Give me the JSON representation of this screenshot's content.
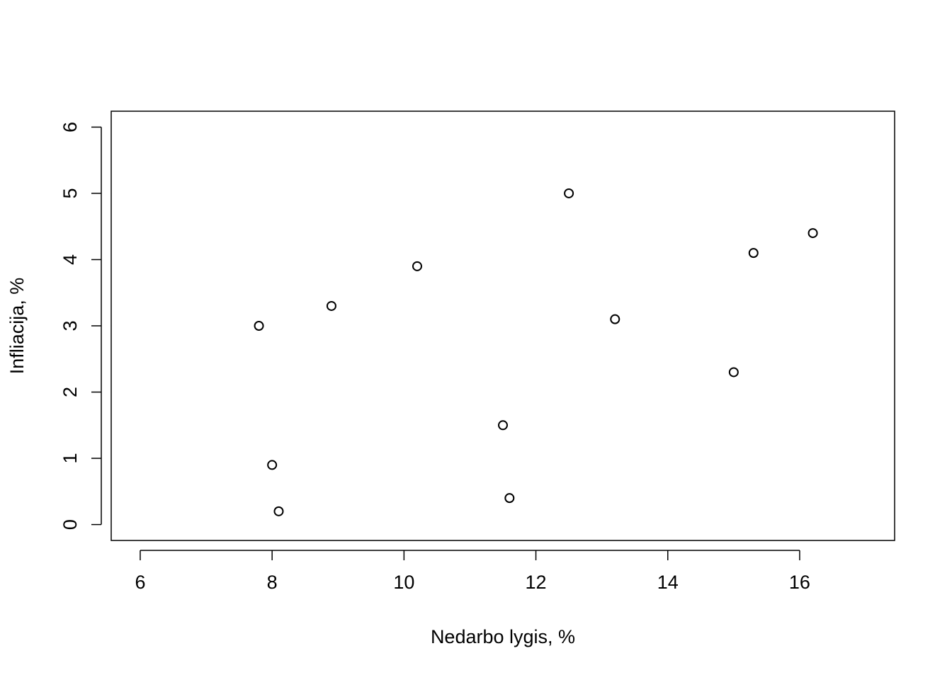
{
  "chart_data": {
    "type": "scatter",
    "x_label": "Nedarbo lygis, %",
    "y_label": "Infliacija, %",
    "x": [
      7.8,
      8.9,
      10.2,
      12.5,
      16.2,
      15.3,
      13.2,
      15.0,
      11.5,
      8.0,
      8.1,
      11.6
    ],
    "values": [
      3.0,
      3.3,
      3.9,
      5.0,
      4.4,
      4.1,
      3.1,
      2.3,
      1.5,
      0.9,
      0.2,
      0.4
    ],
    "color": "#000000",
    "xlim": [
      5.56,
      17.44
    ],
    "xticks": [
      6,
      8,
      10,
      12,
      14,
      16
    ],
    "ylim": [
      -0.24,
      6.24
    ],
    "yticks": [
      0,
      1,
      2,
      3,
      4,
      5,
      6
    ],
    "grid": false
  }
}
